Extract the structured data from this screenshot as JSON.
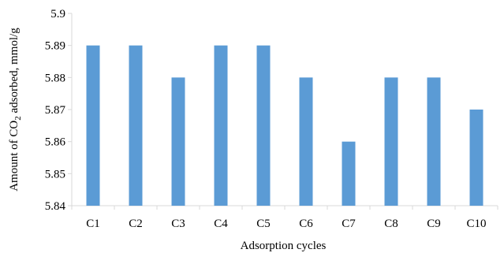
{
  "chart_data": {
    "type": "bar",
    "categories": [
      "C1",
      "C2",
      "C3",
      "C4",
      "C5",
      "C6",
      "C7",
      "C8",
      "C9",
      "C10"
    ],
    "values": [
      5.89,
      5.89,
      5.88,
      5.89,
      5.89,
      5.88,
      5.86,
      5.88,
      5.88,
      5.87
    ],
    "title": "",
    "xlabel": "Adsorption cycles",
    "ylabel": {
      "prefix": "Amount of CO",
      "subscript": "2",
      "suffix": " adsorbed, mmol/g"
    },
    "ylim": [
      5.84,
      5.9
    ],
    "yticks": [
      "5.84",
      "5.85",
      "5.86",
      "5.87",
      "5.88",
      "5.89",
      "5.9"
    ],
    "grid": false,
    "legend": "none",
    "colors": {
      "bar": "#5b9bd5",
      "axis": "#d9d9d9"
    }
  }
}
